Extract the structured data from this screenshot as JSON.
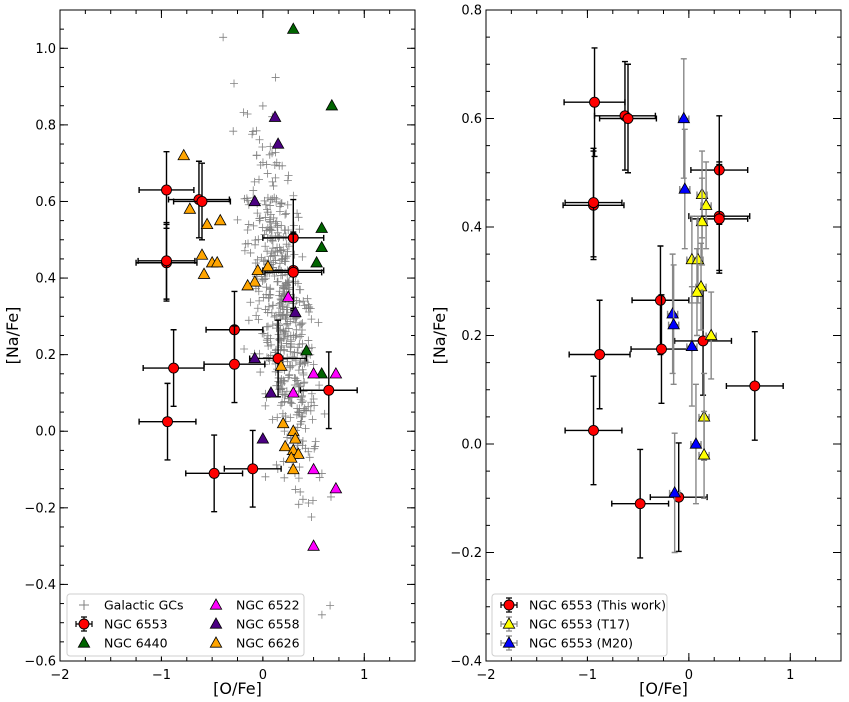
{
  "chart_data": [
    {
      "type": "scatter",
      "xlabel": "[O/Fe]",
      "ylabel": "[Na/Fe]",
      "xlim": [
        -2,
        1.5
      ],
      "ylim": [
        -0.6,
        1.1
      ],
      "xticks": [
        -2,
        -1,
        0,
        1
      ],
      "yticks": [
        -0.6,
        -0.4,
        -0.2,
        0.0,
        0.2,
        0.4,
        0.6,
        0.8,
        1.0
      ],
      "ytick_labels": [
        "−0.6",
        "−0.4",
        "−0.2",
        "0.0",
        "0.2",
        "0.4",
        "0.6",
        "0.8",
        "1.0"
      ],
      "xtick_labels": [
        "−2",
        "−1",
        "0",
        "1"
      ],
      "legend_position": "lower-left",
      "legend": [
        {
          "label": "Galactic GCs",
          "marker": "plus",
          "color": "#808080"
        },
        {
          "label": "NGC 6553",
          "marker": "circle",
          "color": "#ff0000"
        },
        {
          "label": "NGC 6440",
          "marker": "triangle",
          "color": "#006400"
        },
        {
          "label": "NGC 6522",
          "marker": "triangle",
          "color": "#ff00ff"
        },
        {
          "label": "NGC 6558",
          "marker": "triangle",
          "color": "#4b0082"
        },
        {
          "label": "NGC 6626",
          "marker": "triangle",
          "color": "#ffa500"
        }
      ],
      "galactic_gcs_cloud": {
        "center_x": 0.2,
        "center_y": 0.3,
        "count": 520,
        "color": "#808080"
      },
      "series": [
        {
          "name": "NGC 6553",
          "color": "#ff0000",
          "marker": "circle",
          "points": [
            {
              "x": -0.95,
              "y": 0.63,
              "xerr": 0.27,
              "yerr": 0.1
            },
            {
              "x": -0.63,
              "y": 0.605,
              "xerr": 0.3,
              "yerr": 0.1
            },
            {
              "x": -0.6,
              "y": 0.6,
              "xerr": 0.28,
              "yerr": 0.1
            },
            {
              "x": 0.3,
              "y": 0.505,
              "xerr": 0.3,
              "yerr": 0.1
            },
            {
              "x": -0.95,
              "y": 0.44,
              "xerr": 0.3,
              "yerr": 0.1
            },
            {
              "x": -0.95,
              "y": 0.445,
              "xerr": 0.28,
              "yerr": 0.1
            },
            {
              "x": 0.3,
              "y": 0.42,
              "xerr": 0.3,
              "yerr": 0.1
            },
            {
              "x": 0.3,
              "y": 0.415,
              "xerr": 0.28,
              "yerr": 0.1
            },
            {
              "x": -0.28,
              "y": 0.265,
              "xerr": 0.28,
              "yerr": 0.1
            },
            {
              "x": 0.15,
              "y": 0.19,
              "xerr": 0.28,
              "yerr": 0.1
            },
            {
              "x": -0.28,
              "y": 0.175,
              "xerr": 0.3,
              "yerr": 0.1
            },
            {
              "x": -0.88,
              "y": 0.165,
              "xerr": 0.3,
              "yerr": 0.1
            },
            {
              "x": 0.65,
              "y": 0.107,
              "xerr": 0.28,
              "yerr": 0.1
            },
            {
              "x": -0.94,
              "y": 0.025,
              "xerr": 0.28,
              "yerr": 0.1
            },
            {
              "x": -0.1,
              "y": -0.098,
              "xerr": 0.28,
              "yerr": 0.1
            },
            {
              "x": -0.48,
              "y": -0.11,
              "xerr": 0.28,
              "yerr": 0.1
            }
          ]
        },
        {
          "name": "NGC 6440",
          "color": "#006400",
          "marker": "triangle",
          "points": [
            [
              0.3,
              1.05
            ],
            [
              0.68,
              0.85
            ],
            [
              0.58,
              0.53
            ],
            [
              0.58,
              0.48
            ],
            [
              0.53,
              0.44
            ],
            [
              0.43,
              0.21
            ],
            [
              0.58,
              0.15
            ]
          ]
        },
        {
          "name": "NGC 6522",
          "color": "#ff00ff",
          "marker": "triangle",
          "points": [
            [
              0.25,
              0.35
            ],
            [
              0.5,
              0.15
            ],
            [
              0.72,
              0.15
            ],
            [
              0.3,
              0.1
            ],
            [
              0.5,
              -0.1
            ],
            [
              0.72,
              -0.15
            ],
            [
              0.5,
              -0.3
            ]
          ]
        },
        {
          "name": "NGC 6558",
          "color": "#4b0082",
          "marker": "triangle",
          "points": [
            [
              0.12,
              0.82
            ],
            [
              0.15,
              0.75
            ],
            [
              -0.08,
              0.6
            ],
            [
              0.32,
              0.31
            ],
            [
              -0.08,
              0.19
            ],
            [
              0.08,
              0.1
            ],
            [
              0.0,
              -0.02
            ]
          ]
        },
        {
          "name": "NGC 6626",
          "color": "#ffa500",
          "marker": "triangle",
          "points": [
            [
              -0.78,
              0.72
            ],
            [
              -0.72,
              0.58
            ],
            [
              -0.6,
              0.46
            ],
            [
              -0.55,
              0.54
            ],
            [
              -0.42,
              0.55
            ],
            [
              -0.5,
              0.44
            ],
            [
              -0.45,
              0.44
            ],
            [
              -0.58,
              0.41
            ],
            [
              -0.05,
              0.42
            ],
            [
              0.05,
              0.43
            ],
            [
              -0.08,
              0.39
            ],
            [
              -0.15,
              0.38
            ],
            [
              0.18,
              0.17
            ],
            [
              0.2,
              0.02
            ],
            [
              0.3,
              0.0
            ],
            [
              0.32,
              -0.02
            ],
            [
              0.22,
              -0.04
            ],
            [
              0.3,
              -0.05
            ],
            [
              0.35,
              -0.06
            ],
            [
              0.28,
              -0.07
            ],
            [
              0.3,
              -0.1
            ]
          ]
        }
      ]
    },
    {
      "type": "scatter",
      "xlabel": "[O/Fe]",
      "ylabel": "[Na/Fe]",
      "xlim": [
        -2,
        1.5
      ],
      "ylim": [
        -0.4,
        0.8
      ],
      "xticks": [
        -2,
        -1,
        0,
        1
      ],
      "yticks": [
        -0.4,
        -0.2,
        0.0,
        0.2,
        0.4,
        0.6,
        0.8
      ],
      "ytick_labels": [
        "−0.4",
        "−0.2",
        "0.0",
        "0.2",
        "0.4",
        "0.6",
        "0.8"
      ],
      "xtick_labels": [
        "−2",
        "−1",
        "0",
        "1"
      ],
      "legend_position": "lower-left",
      "legend": [
        {
          "label": "NGC 6553 (This work)",
          "marker": "circle",
          "color": "#ff0000"
        },
        {
          "label": "NGC 6553 (T17)",
          "marker": "triangle",
          "color": "#ffff00"
        },
        {
          "label": "NGC 6553 (M20)",
          "marker": "triangle",
          "color": "#0000ff"
        }
      ],
      "series": [
        {
          "name": "NGC 6553 (This work)",
          "color": "#ff0000",
          "marker": "circle",
          "points": [
            {
              "x": -0.93,
              "y": 0.63,
              "xerr": 0.3,
              "yerr": 0.1
            },
            {
              "x": -0.63,
              "y": 0.605,
              "xerr": 0.3,
              "yerr": 0.1
            },
            {
              "x": -0.6,
              "y": 0.6,
              "xerr": 0.28,
              "yerr": 0.1
            },
            {
              "x": 0.3,
              "y": 0.505,
              "xerr": 0.28,
              "yerr": 0.1
            },
            {
              "x": -0.94,
              "y": 0.44,
              "xerr": 0.3,
              "yerr": 0.1
            },
            {
              "x": -0.94,
              "y": 0.445,
              "xerr": 0.28,
              "yerr": 0.1
            },
            {
              "x": 0.3,
              "y": 0.42,
              "xerr": 0.3,
              "yerr": 0.1
            },
            {
              "x": 0.3,
              "y": 0.415,
              "xerr": 0.28,
              "yerr": 0.1
            },
            {
              "x": -0.28,
              "y": 0.265,
              "xerr": 0.28,
              "yerr": 0.1
            },
            {
              "x": 0.14,
              "y": 0.19,
              "xerr": 0.28,
              "yerr": 0.1
            },
            {
              "x": -0.27,
              "y": 0.175,
              "xerr": 0.3,
              "yerr": 0.1
            },
            {
              "x": -0.88,
              "y": 0.165,
              "xerr": 0.3,
              "yerr": 0.1
            },
            {
              "x": 0.65,
              "y": 0.107,
              "xerr": 0.28,
              "yerr": 0.1
            },
            {
              "x": -0.94,
              "y": 0.025,
              "xerr": 0.28,
              "yerr": 0.1
            },
            {
              "x": -0.1,
              "y": -0.098,
              "xerr": 0.28,
              "yerr": 0.1
            },
            {
              "x": -0.48,
              "y": -0.11,
              "xerr": 0.28,
              "yerr": 0.1
            }
          ]
        },
        {
          "name": "NGC 6553 (T17)",
          "color": "#ffff00",
          "marker": "triangle",
          "points": [
            {
              "x": 0.13,
              "y": 0.46,
              "xerr": 0.05,
              "yerr": 0.08
            },
            {
              "x": 0.17,
              "y": 0.44,
              "xerr": 0.05,
              "yerr": 0.08
            },
            {
              "x": 0.13,
              "y": 0.41,
              "xerr": 0.05,
              "yerr": 0.08
            },
            {
              "x": 0.03,
              "y": 0.34,
              "xerr": 0.05,
              "yerr": 0.08
            },
            {
              "x": 0.09,
              "y": 0.34,
              "xerr": 0.05,
              "yerr": 0.08
            },
            {
              "x": 0.12,
              "y": 0.29,
              "xerr": 0.05,
              "yerr": 0.08
            },
            {
              "x": 0.08,
              "y": 0.28,
              "xerr": 0.05,
              "yerr": 0.08
            },
            {
              "x": 0.22,
              "y": 0.2,
              "xerr": 0.05,
              "yerr": 0.08
            },
            {
              "x": 0.15,
              "y": 0.05,
              "xerr": 0.05,
              "yerr": 0.08
            },
            {
              "x": 0.15,
              "y": -0.02,
              "xerr": 0.05,
              "yerr": 0.08
            }
          ]
        },
        {
          "name": "NGC 6553 (M20)",
          "color": "#0000ff",
          "marker": "triangle",
          "points": [
            {
              "x": -0.05,
              "y": 0.6,
              "xerr": 0.05,
              "yerr": 0.11
            },
            {
              "x": -0.04,
              "y": 0.47,
              "xerr": 0.05,
              "yerr": 0.11
            },
            {
              "x": -0.16,
              "y": 0.24,
              "xerr": 0.05,
              "yerr": 0.11
            },
            {
              "x": -0.15,
              "y": 0.22,
              "xerr": 0.05,
              "yerr": 0.11
            },
            {
              "x": 0.03,
              "y": 0.18,
              "xerr": 0.05,
              "yerr": 0.11
            },
            {
              "x": 0.07,
              "y": 0.0,
              "xerr": 0.05,
              "yerr": 0.11
            },
            {
              "x": -0.14,
              "y": -0.09,
              "xerr": 0.05,
              "yerr": 0.11
            }
          ]
        }
      ]
    }
  ]
}
